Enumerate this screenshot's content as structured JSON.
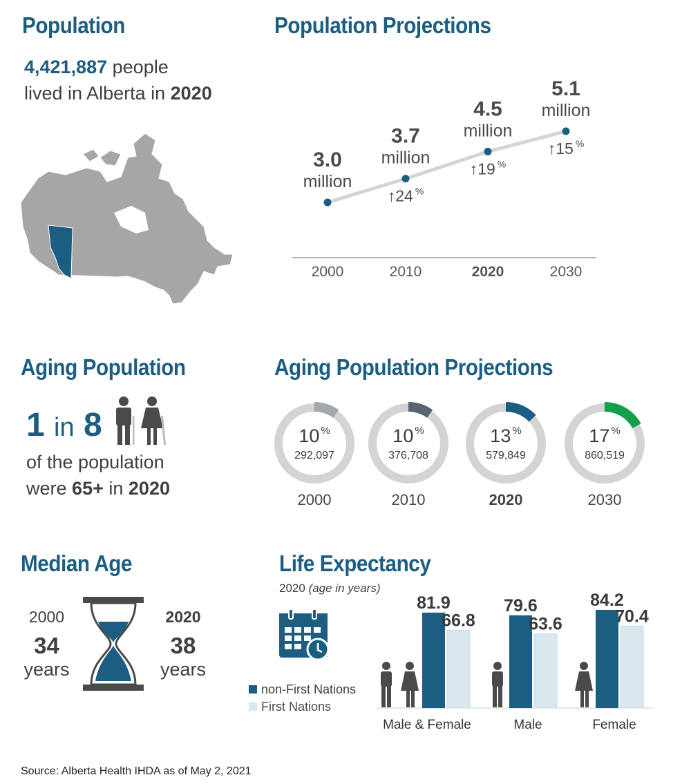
{
  "population": {
    "heading": "Population",
    "count": "4,421,887",
    "line1_rest": "people",
    "line2_pre": "lived in Alberta in",
    "line2_year": "2020"
  },
  "projections": {
    "heading": "Population Projections",
    "points": [
      {
        "year": "2000",
        "value": "3.0",
        "unit": "million",
        "change": "",
        "pct": ""
      },
      {
        "year": "2010",
        "value": "3.7",
        "unit": "million",
        "change": "24",
        "pct": "%"
      },
      {
        "year": "2020",
        "value": "4.5",
        "unit": "million",
        "change": "19",
        "pct": "%"
      },
      {
        "year": "2030",
        "value": "5.1",
        "unit": "million",
        "change": "15",
        "pct": "%"
      }
    ],
    "arrow": "↑"
  },
  "chart_data": {
    "type": "line",
    "x": [
      "2000",
      "2010",
      "2020",
      "2030"
    ],
    "series": [
      {
        "values": [
          3.0,
          3.7,
          4.5,
          5.1
        ]
      }
    ],
    "ylabel": "",
    "xlabel": ""
  },
  "aging": {
    "heading": "Aging Population",
    "one": "1",
    "in": "in",
    "eight": "8",
    "line1": "of the population",
    "line2_pre": "were",
    "line2_age": "65+",
    "line2_in": "in",
    "line2_year": "2020"
  },
  "aging_proj": {
    "heading": "Aging Population Projections",
    "donuts": [
      {
        "year": "2000",
        "pct": "10",
        "count": "292,097",
        "fraction": 0.1,
        "color": "#a3a8ac"
      },
      {
        "year": "2010",
        "pct": "10",
        "count": "376,708",
        "fraction": 0.1,
        "color": "#5a6470"
      },
      {
        "year": "2020",
        "pct": "13",
        "count": "579,849",
        "fraction": 0.13,
        "color": "#1b5e82"
      },
      {
        "year": "2030",
        "pct": "17",
        "count": "860,519",
        "fraction": 0.17,
        "color": "#13a04a"
      }
    ],
    "pct_sign": "%"
  },
  "median": {
    "heading": "Median Age",
    "left_year": "2000",
    "left_value": "34",
    "left_unit": "years",
    "right_year": "2020",
    "right_value": "38",
    "right_unit": "years"
  },
  "life": {
    "heading": "Life Expectancy",
    "subtitle_year": "2020",
    "subtitle_note": "(age in years)",
    "legend": [
      {
        "label": "non-First Nations",
        "color": "#1b5e82"
      },
      {
        "label": "First Nations",
        "color": "#dbe7ef"
      }
    ],
    "groups": [
      {
        "label": "Male & Female",
        "nfn": 81.9,
        "fn": 66.8,
        "nfn_label": "81.9",
        "fn_label": "66.8"
      },
      {
        "label": "Male",
        "nfn": 79.6,
        "fn": 63.6,
        "nfn_label": "79.6",
        "fn_label": "63.6"
      },
      {
        "label": "Female",
        "nfn": 84.2,
        "fn": 70.4,
        "nfn_label": "84.2",
        "fn_label": "70.4"
      }
    ]
  },
  "source": "Source: Alberta Health IHDA as of May 2, 2021",
  "colors": {
    "accent": "#1b5e82",
    "gray": "#d0d0d0",
    "green": "#13a04a"
  }
}
